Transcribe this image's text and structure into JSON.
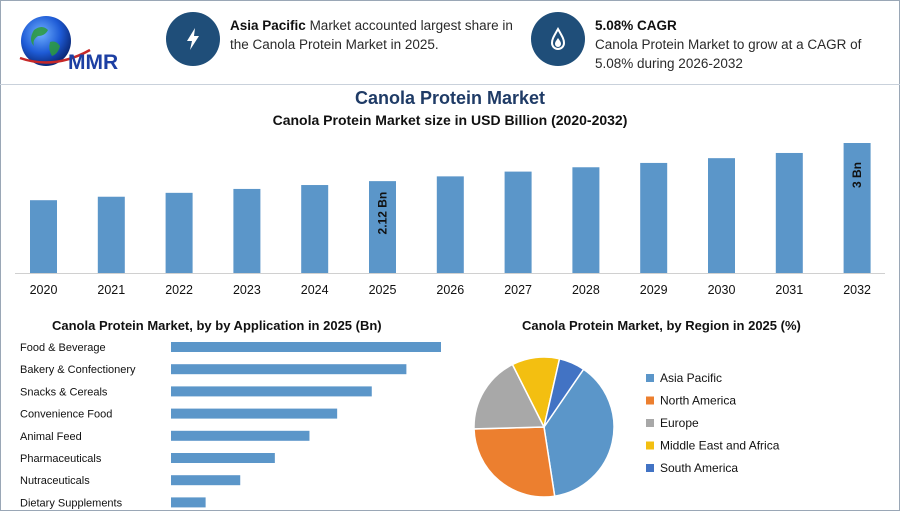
{
  "header": {
    "logo_text": "MMR",
    "info1": {
      "bold": "Asia Pacific",
      "rest": "Market accounted largest share in the Canola Protein Market in 2025."
    },
    "info2": {
      "bold": "5.08% CAGR",
      "rest": "Canola Protein Market to grow at a CAGR of 5.08% during 2026-2032"
    }
  },
  "main_title": "Canola Protein Market",
  "chart_data": [
    {
      "type": "bar",
      "title": "Canola Protein Market size in USD Billion (2020-2032)",
      "categories": [
        "2020",
        "2021",
        "2022",
        "2023",
        "2024",
        "2025",
        "2026",
        "2027",
        "2028",
        "2029",
        "2030",
        "2031",
        "2032"
      ],
      "values": [
        1.68,
        1.76,
        1.85,
        1.94,
        2.03,
        2.12,
        2.23,
        2.34,
        2.44,
        2.54,
        2.65,
        2.77,
        3.0
      ],
      "data_labels": {
        "2025": "2.12 Bn",
        "2032": "3 Bn"
      },
      "color": "#5b96c9"
    },
    {
      "type": "bar",
      "orientation": "horizontal",
      "title": "Canola Protein Market, by by Application in 2025 (Bn)",
      "categories": [
        "Food & Beverage",
        "Bakery & Confectionery",
        "Snacks & Cereals",
        "Convenience Food",
        "Animal Feed",
        "Pharmaceuticals",
        "Nutraceuticals",
        "Dietary Supplements"
      ],
      "values": [
        0.78,
        0.68,
        0.58,
        0.48,
        0.4,
        0.3,
        0.2,
        0.1
      ],
      "color": "#5b96c9"
    },
    {
      "type": "pie",
      "title": "Canola Protein Market, by Region in 2025 (%)",
      "labels": [
        "Asia Pacific",
        "North America",
        "Europe",
        "Middle East and Africa",
        "South America"
      ],
      "values": [
        38,
        27,
        18,
        11,
        6
      ],
      "colors": [
        "#5b96c9",
        "#ec7f2f",
        "#a8a8a8",
        "#f3bf11",
        "#4273c4"
      ]
    }
  ]
}
